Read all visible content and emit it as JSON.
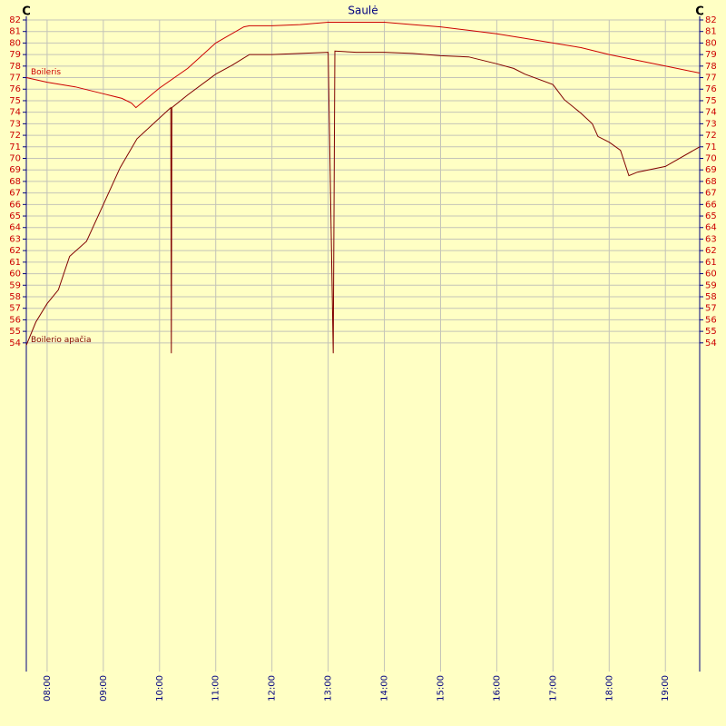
{
  "chart_data": {
    "type": "line",
    "title": "Saulė",
    "y_unit": "C",
    "xlim": [
      7.63,
      19.61
    ],
    "ylim": [
      25.5,
      82
    ],
    "xticks": [
      {
        "value": 8,
        "label": "08:00"
      },
      {
        "value": 9,
        "label": "09:00"
      },
      {
        "value": 10,
        "label": "10:00"
      },
      {
        "value": 11,
        "label": "11:00"
      },
      {
        "value": 12,
        "label": "12:00"
      },
      {
        "value": 13,
        "label": "13:00"
      },
      {
        "value": 14,
        "label": "14:00"
      },
      {
        "value": 15,
        "label": "15:00"
      },
      {
        "value": 16,
        "label": "16:00"
      },
      {
        "value": 17,
        "label": "17:00"
      },
      {
        "value": 18,
        "label": "18:00"
      },
      {
        "value": 19,
        "label": "19:00"
      }
    ],
    "yticks": [
      54,
      55,
      56,
      57,
      58,
      59,
      60,
      61,
      62,
      63,
      64,
      65,
      66,
      67,
      68,
      69,
      70,
      71,
      72,
      73,
      74,
      75,
      76,
      77,
      78,
      79,
      80,
      81,
      82
    ],
    "grid": true,
    "series": [
      {
        "name": "Boileris",
        "color": "#cc0000",
        "x": [
          7.63,
          8.0,
          8.5,
          9.0,
          9.33,
          9.5,
          9.58,
          10.0,
          10.5,
          11.0,
          11.5,
          11.6,
          12.0,
          12.5,
          13.0,
          13.5,
          14.0,
          14.5,
          15.0,
          15.5,
          16.0,
          16.5,
          17.0,
          17.5,
          18.0,
          18.5,
          19.0,
          19.61
        ],
        "values": [
          77.0,
          76.6,
          76.2,
          75.6,
          75.2,
          74.8,
          74.4,
          76.1,
          77.8,
          80.0,
          81.4,
          81.5,
          81.5,
          81.6,
          81.8,
          81.8,
          81.8,
          81.6,
          81.4,
          81.1,
          80.8,
          80.4,
          80.0,
          79.6,
          79.0,
          78.5,
          78.0,
          77.4
        ]
      },
      {
        "name": "Boilerio apačia",
        "color": "#800000",
        "x": [
          7.63,
          7.8,
          8.0,
          8.2,
          8.4,
          8.7,
          9.0,
          9.3,
          9.6,
          10.0,
          10.2,
          10.21,
          10.22,
          10.5,
          11.0,
          11.3,
          11.6,
          12.0,
          12.5,
          13.0,
          13.09,
          13.12,
          13.5,
          14.0,
          14.5,
          15.0,
          15.5,
          16.0,
          16.3,
          16.5,
          17.0,
          17.2,
          17.5,
          17.7,
          17.8,
          18.0,
          18.2,
          18.35,
          18.5,
          19.0,
          19.61
        ],
        "values": [
          53.8,
          55.8,
          57.4,
          58.6,
          61.5,
          62.8,
          66.0,
          69.2,
          71.7,
          73.5,
          74.4,
          53.1,
          74.4,
          75.5,
          77.3,
          78.1,
          79.0,
          79.0,
          79.1,
          79.2,
          53.1,
          79.3,
          79.2,
          79.2,
          79.1,
          78.9,
          78.8,
          78.2,
          77.8,
          77.3,
          76.4,
          75.1,
          73.9,
          73.0,
          71.9,
          71.4,
          70.7,
          68.5,
          68.8,
          69.3,
          71.0
        ]
      }
    ]
  }
}
